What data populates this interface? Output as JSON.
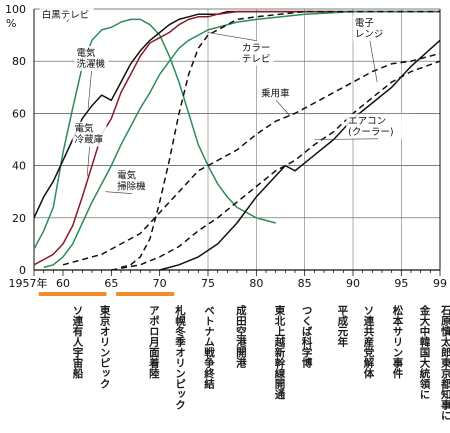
{
  "chart_data": {
    "type": "line",
    "title": "",
    "ylabel": "%",
    "ylim": [
      0,
      100
    ],
    "xlim": [
      1957,
      1999
    ],
    "y_ticks": [
      "0",
      "20",
      "40",
      "60",
      "80",
      "100"
    ],
    "x_ticks": [
      "1957年",
      "60",
      "65",
      "70",
      "75",
      "80",
      "85",
      "90",
      "95",
      "99"
    ],
    "grid": true,
    "series": [
      {
        "name": "白黒テレビ",
        "color": "#2e8b57",
        "dash": "",
        "x": [
          1957,
          1958,
          1959,
          1960,
          1961,
          1962,
          1963,
          1964,
          1965,
          1966,
          1967,
          1968,
          1969,
          1970,
          1971,
          1972,
          1973,
          1974,
          1975,
          1976,
          1977,
          1978,
          1979,
          1980,
          1981,
          1982
        ],
        "y": [
          8,
          15,
          24,
          45,
          62,
          78,
          88,
          92,
          93,
          95,
          96,
          96,
          94,
          90,
          82,
          72,
          60,
          48,
          40,
          33,
          28,
          24,
          22,
          20,
          19,
          18
        ]
      },
      {
        "name": "電気洗濯機",
        "color": "#111111",
        "dash": "",
        "x": [
          1957,
          1958,
          1959,
          1960,
          1961,
          1962,
          1963,
          1964,
          1965,
          1966,
          1967,
          1968,
          1969,
          1970,
          1971,
          1972,
          1973,
          1974,
          1975,
          1976,
          1977,
          1978,
          1980,
          1985,
          1990,
          1995,
          1999
        ],
        "y": [
          20,
          28,
          34,
          42,
          50,
          58,
          63,
          67,
          65,
          72,
          79,
          84,
          88,
          91,
          94,
          96,
          97,
          98,
          98,
          98,
          99,
          99,
          99,
          99,
          99,
          99,
          99
        ]
      },
      {
        "name": "電気冷蔵庫",
        "color": "#8b1a2b",
        "dash": "",
        "x": [
          1957,
          1958,
          1959,
          1960,
          1961,
          1962,
          1963,
          1964,
          1965,
          1966,
          1967,
          1968,
          1969,
          1970,
          1971,
          1972,
          1973,
          1974,
          1975,
          1976,
          1978,
          1980,
          1985,
          1990,
          1995,
          1999
        ],
        "y": [
          2,
          4,
          6,
          10,
          17,
          28,
          40,
          52,
          58,
          68,
          75,
          82,
          87,
          89,
          91,
          94,
          96,
          97,
          97,
          98,
          99,
          99,
          99,
          99,
          99,
          99
        ]
      },
      {
        "name": "電気掃除機",
        "color": "#2e8b57",
        "dash": "",
        "x": [
          1958,
          1959,
          1960,
          1961,
          1962,
          1963,
          1964,
          1965,
          1966,
          1967,
          1968,
          1969,
          1970,
          1971,
          1972,
          1973,
          1974,
          1975,
          1976,
          1978,
          1980,
          1985,
          1990,
          1995,
          1999
        ],
        "y": [
          1,
          2,
          5,
          10,
          18,
          26,
          33,
          40,
          48,
          55,
          62,
          68,
          75,
          80,
          85,
          88,
          90,
          92,
          93,
          95,
          96,
          98,
          99,
          99,
          99
        ]
      },
      {
        "name": "カラーテレビ",
        "color": "#111111",
        "dash": "6,4",
        "x": [
          1966,
          1967,
          1968,
          1969,
          1970,
          1971,
          1972,
          1973,
          1974,
          1975,
          1976,
          1977,
          1978,
          1980,
          1985,
          1990,
          1995,
          1999
        ],
        "y": [
          1,
          2,
          5,
          12,
          26,
          42,
          60,
          75,
          85,
          90,
          92,
          94,
          96,
          97,
          99,
          99,
          99,
          99
        ]
      },
      {
        "name": "乗用車",
        "color": "#111111",
        "dash": "6,4",
        "x": [
          1960,
          1962,
          1964,
          1966,
          1968,
          1970,
          1972,
          1974,
          1976,
          1978,
          1980,
          1982,
          1984,
          1986,
          1988,
          1990,
          1992,
          1994,
          1996,
          1999
        ],
        "y": [
          2,
          4,
          6,
          10,
          14,
          22,
          30,
          38,
          42,
          46,
          52,
          57,
          60,
          64,
          68,
          72,
          76,
          79,
          80,
          83
        ]
      },
      {
        "name": "エアコン（クーラー）",
        "color": "#111111",
        "dash": "6,4",
        "x": [
          1965,
          1968,
          1970,
          1972,
          1974,
          1976,
          1978,
          1980,
          1982,
          1984,
          1986,
          1988,
          1990,
          1992,
          1994,
          1996,
          1999
        ],
        "y": [
          0,
          2,
          5,
          9,
          15,
          20,
          26,
          32,
          38,
          42,
          48,
          53,
          60,
          66,
          72,
          76,
          80
        ]
      },
      {
        "name": "電子レンジ",
        "color": "#111111",
        "dash": "",
        "x": [
          1970,
          1972,
          1974,
          1976,
          1978,
          1980,
          1982,
          1983,
          1984,
          1986,
          1988,
          1990,
          1992,
          1994,
          1996,
          1999
        ],
        "y": [
          0,
          2,
          5,
          10,
          18,
          28,
          36,
          40,
          38,
          44,
          50,
          58,
          64,
          70,
          78,
          88
        ]
      }
    ],
    "series_labels": [
      {
        "lines": [
          "白黒テレビ"
        ],
        "x": 1957.8,
        "y": 96.5,
        "ex": 1960.6,
        "ey": 96
      },
      {
        "lines": [
          "電気",
          "洗濯機"
        ],
        "x": 1961.4,
        "y": 82,
        "ex": 1962.6,
        "ey": 62
      },
      {
        "lines": [
          "電気",
          "冷蔵庫"
        ],
        "x": 1961.2,
        "y": 53,
        "ex": 1962.5,
        "ey": 36
      },
      {
        "lines": [
          "電気",
          "掃除機"
        ],
        "x": 1965.6,
        "y": 35,
        "ex": 1964.4,
        "ey": 30
      },
      {
        "lines": [
          "カラー",
          "テレビ"
        ],
        "x": 1978.5,
        "y": 84,
        "ex": 1975,
        "ey": 91
      },
      {
        "lines": [
          "乗用車"
        ],
        "x": 1980.5,
        "y": 66.5,
        "ex": 1983.5,
        "ey": 59
      },
      {
        "lines": [
          "電子",
          "レンジ"
        ],
        "x": 1990.2,
        "y": 93.5,
        "ex": 1992.5,
        "ey": 72
      },
      {
        "lines": [
          "エアコン",
          "(クーラー)"
        ],
        "x": 1989.5,
        "y": 56,
        "ex": 1986,
        "ey": 50
      }
    ],
    "highlight_bars": [
      {
        "x": [
          1957.5,
          1964.5
        ],
        "color": "#f28c28"
      },
      {
        "x": [
          1965.5,
          1971.5
        ],
        "color": "#f28c28"
      }
    ],
    "events": [
      {
        "year": 1961.5,
        "label": "ソ連有人宇宙船"
      },
      {
        "year": 1964.3,
        "label": "東京オリンピック"
      },
      {
        "year": 1969.4,
        "label": "アポロ月面着陸"
      },
      {
        "year": 1972.1,
        "label": "札幌冬季オリンピック"
      },
      {
        "year": 1975.1,
        "label": "ベトナム戦争終結"
      },
      {
        "year": 1978.4,
        "label": "成田空港開港"
      },
      {
        "year": 1982.4,
        "label": "東北上越新幹線開通"
      },
      {
        "year": 1985.2,
        "label": "つくば科学博"
      },
      {
        "year": 1988.9,
        "label": "平成元年"
      },
      {
        "year": 1991.6,
        "label": "ソ連共産党解体"
      },
      {
        "year": 1994.6,
        "label": "松本サリン事件"
      },
      {
        "year": 1997.4,
        "label": "金大中韓国大統領に"
      },
      {
        "year": 1999.6,
        "label": "石原慎太郎東京都知事に"
      }
    ]
  }
}
